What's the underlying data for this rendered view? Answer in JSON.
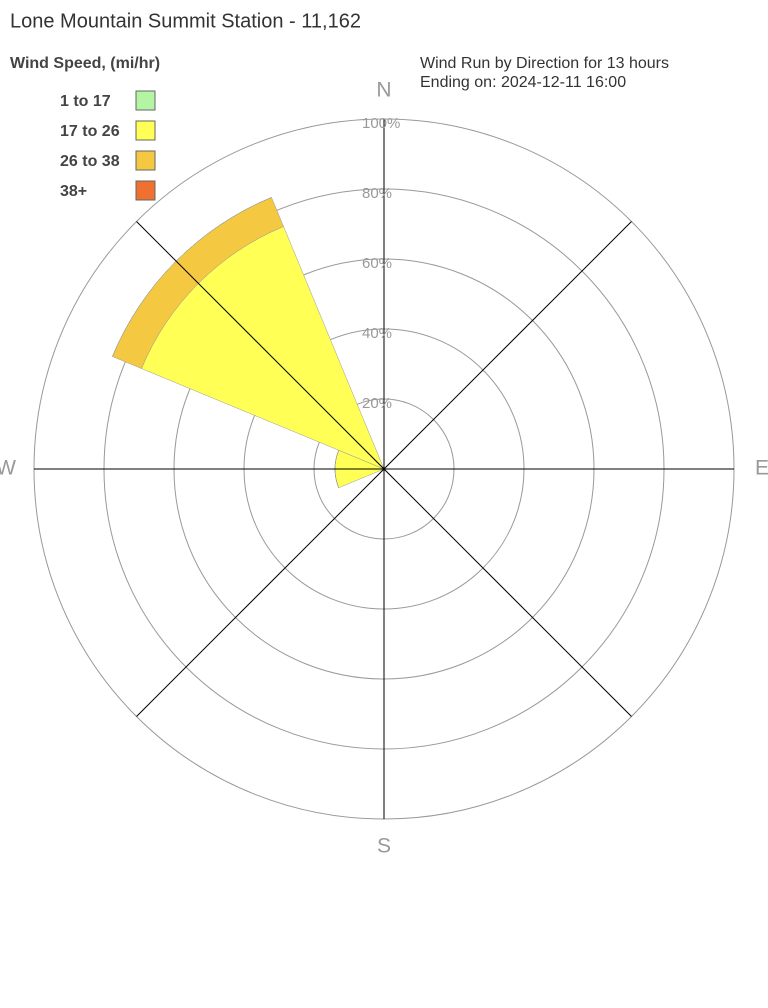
{
  "chart_data": {
    "type": "windrose",
    "title": "Lone Mountain Summit Station - 11,162",
    "legend_title": "Wind Speed, (mi/hr)",
    "subtitle": [
      "Wind Run by Direction for 13 hours",
      "Ending on: 2024-12-11 16:00"
    ],
    "categories": [
      "N",
      null,
      "E",
      null,
      "S",
      null,
      "W",
      null
    ],
    "rlim": [
      0,
      100
    ],
    "rticks": [
      {
        "value": 20,
        "label": "20%"
      },
      {
        "value": 40,
        "label": "40%"
      },
      {
        "value": 60,
        "label": "60%"
      },
      {
        "value": 80,
        "label": "80%"
      },
      {
        "value": 100,
        "label": "100%"
      }
    ],
    "series": [
      {
        "name": "1 to 17",
        "color": "#b3f5a3",
        "values": [
          0,
          0,
          0,
          0,
          0,
          0,
          0,
          0
        ]
      },
      {
        "name": "17 to 26",
        "color": "#ffff55",
        "values": [
          0,
          0,
          0,
          0,
          0,
          0,
          14,
          75
        ]
      },
      {
        "name": "26 to 38",
        "color": "#f5c842",
        "values": [
          0,
          0,
          0,
          0,
          0,
          0,
          0,
          9
        ]
      },
      {
        "name": "38+",
        "color": "#f07030",
        "values": [
          0,
          0,
          0,
          0,
          0,
          0,
          0,
          0
        ]
      }
    ]
  }
}
